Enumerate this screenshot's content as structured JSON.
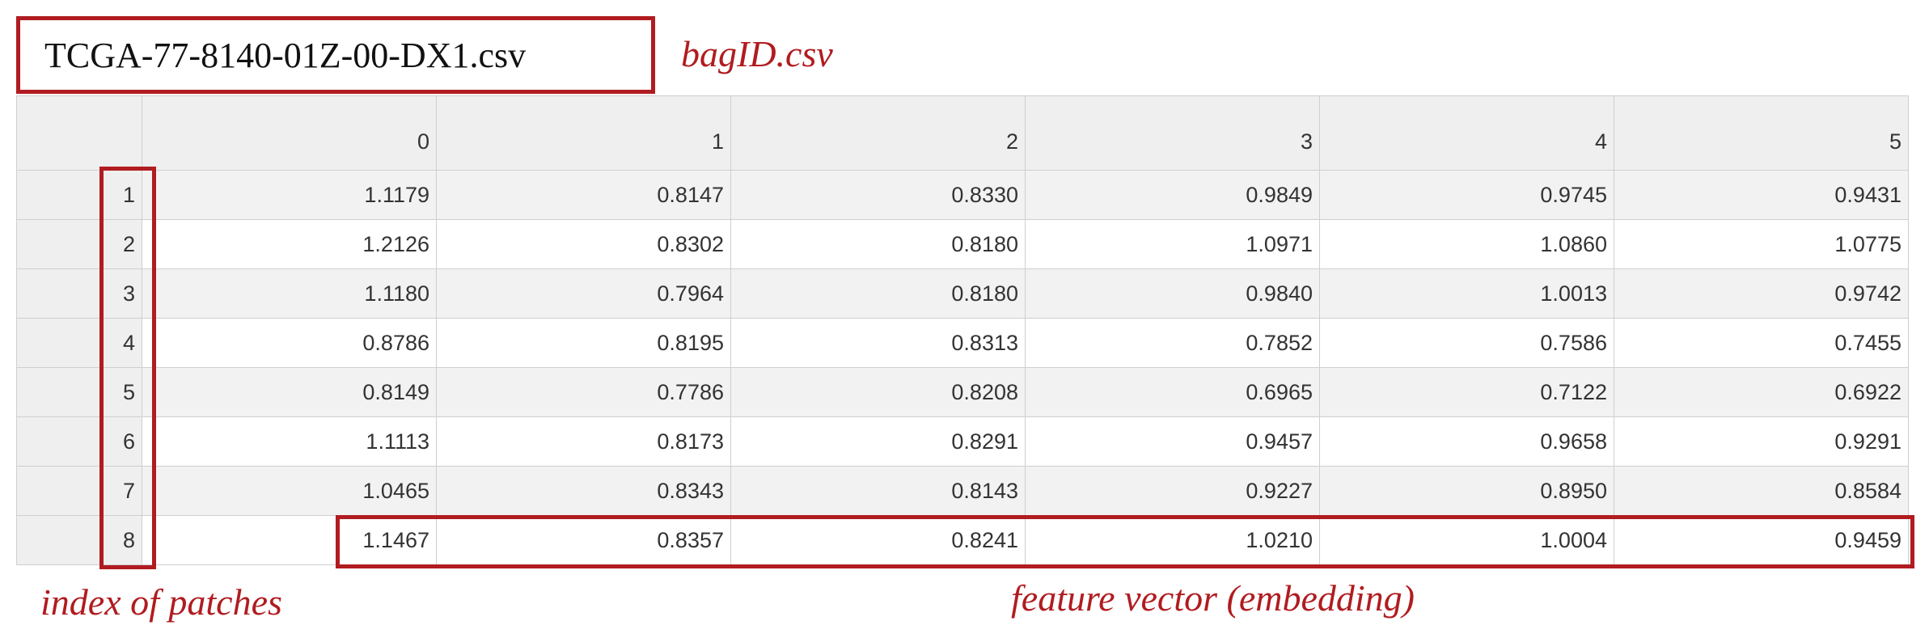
{
  "header": {
    "filename": "TCGA-77-8140-01Z-00-DX1.csv",
    "bag_label": "bagID.csv"
  },
  "table": {
    "columns": [
      "0",
      "1",
      "2",
      "3",
      "4",
      "5"
    ],
    "rows": [
      {
        "index": "1",
        "values": [
          "1.1179",
          "0.8147",
          "0.8330",
          "0.9849",
          "0.9745",
          "0.9431"
        ]
      },
      {
        "index": "2",
        "values": [
          "1.2126",
          "0.8302",
          "0.8180",
          "1.0971",
          "1.0860",
          "1.0775"
        ]
      },
      {
        "index": "3",
        "values": [
          "1.1180",
          "0.7964",
          "0.8180",
          "0.9840",
          "1.0013",
          "0.9742"
        ]
      },
      {
        "index": "4",
        "values": [
          "0.8786",
          "0.8195",
          "0.8313",
          "0.7852",
          "0.7586",
          "0.7455"
        ]
      },
      {
        "index": "5",
        "values": [
          "0.8149",
          "0.7786",
          "0.8208",
          "0.6965",
          "0.7122",
          "0.6922"
        ]
      },
      {
        "index": "6",
        "values": [
          "1.1113",
          "0.8173",
          "0.8291",
          "0.9457",
          "0.9658",
          "0.9291"
        ]
      },
      {
        "index": "7",
        "values": [
          "1.0465",
          "0.8343",
          "0.8143",
          "0.9227",
          "0.8950",
          "0.8584"
        ]
      },
      {
        "index": "8",
        "values": [
          "1.1467",
          "0.8357",
          "0.8241",
          "1.0210",
          "1.0004",
          "0.9459"
        ]
      }
    ]
  },
  "annotations": {
    "index_label": "index of patches",
    "vector_label": "feature vector (embedding)",
    "highlight_color": "#b01c20"
  }
}
